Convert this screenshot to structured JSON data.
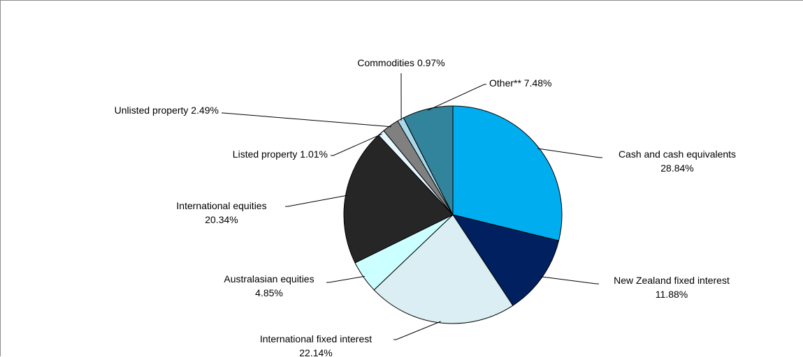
{
  "chart_data": {
    "type": "pie",
    "title": "",
    "slices": [
      {
        "label": "Cash and cash equivalents",
        "value_label": "28.84%",
        "value": 28.84,
        "color": "#00AEEF"
      },
      {
        "label": "New Zealand fixed interest",
        "value_label": "11.88%",
        "value": 11.88,
        "color": "#002060"
      },
      {
        "label": "International fixed interest",
        "value_label": "22.14%",
        "value": 22.14,
        "color": "#DAEEF3"
      },
      {
        "label": "Australasian equities",
        "value_label": "4.85%",
        "value": 4.85,
        "color": "#CCFFFF"
      },
      {
        "label": "International equities",
        "value_label": "20.34%",
        "value": 20.34,
        "color": "#262626"
      },
      {
        "label": "Listed property",
        "value_label": "1.01%",
        "value": 1.01,
        "color": "#E6F7FF"
      },
      {
        "label": "Unlisted property",
        "value_label": "2.49%",
        "value": 2.49,
        "color": "#808080"
      },
      {
        "label": "Commodities",
        "value_label": "0.97%",
        "value": 0.97,
        "color": "#A9D8EA"
      },
      {
        "label": "Other**",
        "value_label": "7.48%",
        "value": 7.48,
        "color": "#31849B"
      }
    ],
    "start_angle": "12 o'clock",
    "direction": "clockwise"
  }
}
